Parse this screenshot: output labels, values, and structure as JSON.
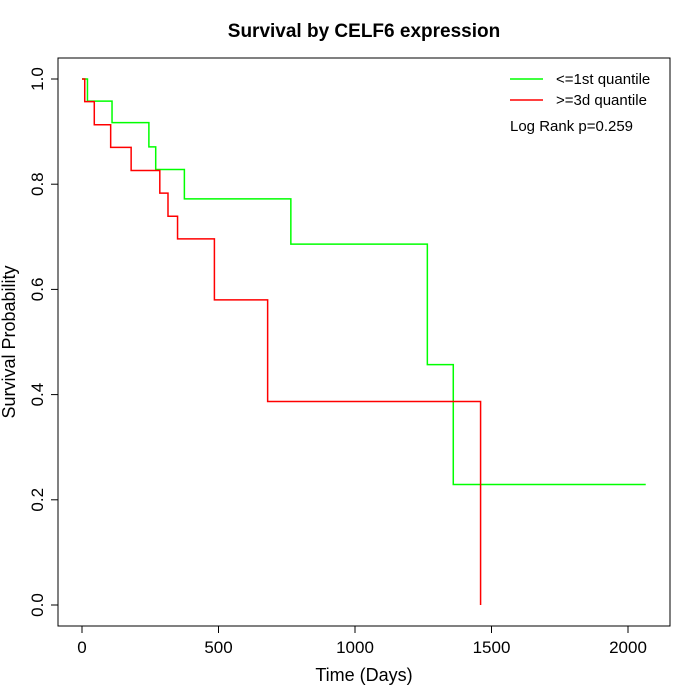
{
  "chart_data": {
    "type": "line",
    "title": "Survival by CELF6 expression",
    "xlabel": "Time (Days)",
    "ylabel": "Survival Probability",
    "xlim": [
      0,
      2070
    ],
    "ylim": [
      0,
      1
    ],
    "x_ticks": [
      0,
      500,
      1000,
      1500,
      2000
    ],
    "x_tick_labels": [
      "0",
      "500",
      "1000",
      "1500",
      "2000"
    ],
    "y_ticks": [
      0,
      0.2,
      0.4,
      0.6,
      0.8,
      1
    ],
    "y_tick_labels": [
      "0.0",
      "0.2",
      "0.4",
      "0.6",
      "0.8",
      "1.0"
    ],
    "grid": false,
    "legend_position": "top-right",
    "annotation": "Log Rank p=0.259",
    "series": [
      {
        "name": "<=1st quantile",
        "color": "#00ff00",
        "x": [
          0,
          20,
          110,
          245,
          270,
          280,
          375,
          765,
          1265,
          1360,
          2065
        ],
        "y": [
          1.0,
          0.958,
          0.917,
          0.871,
          0.828,
          0.828,
          0.772,
          0.686,
          0.457,
          0.229,
          0.229
        ]
      },
      {
        "name": ">=3d quantile",
        "color": "#ff0000",
        "x": [
          0,
          10,
          45,
          105,
          180,
          285,
          315,
          350,
          485,
          680,
          1460
        ],
        "y": [
          1.0,
          0.957,
          0.913,
          0.87,
          0.826,
          0.783,
          0.739,
          0.696,
          0.58,
          0.387,
          0.0
        ]
      }
    ]
  }
}
